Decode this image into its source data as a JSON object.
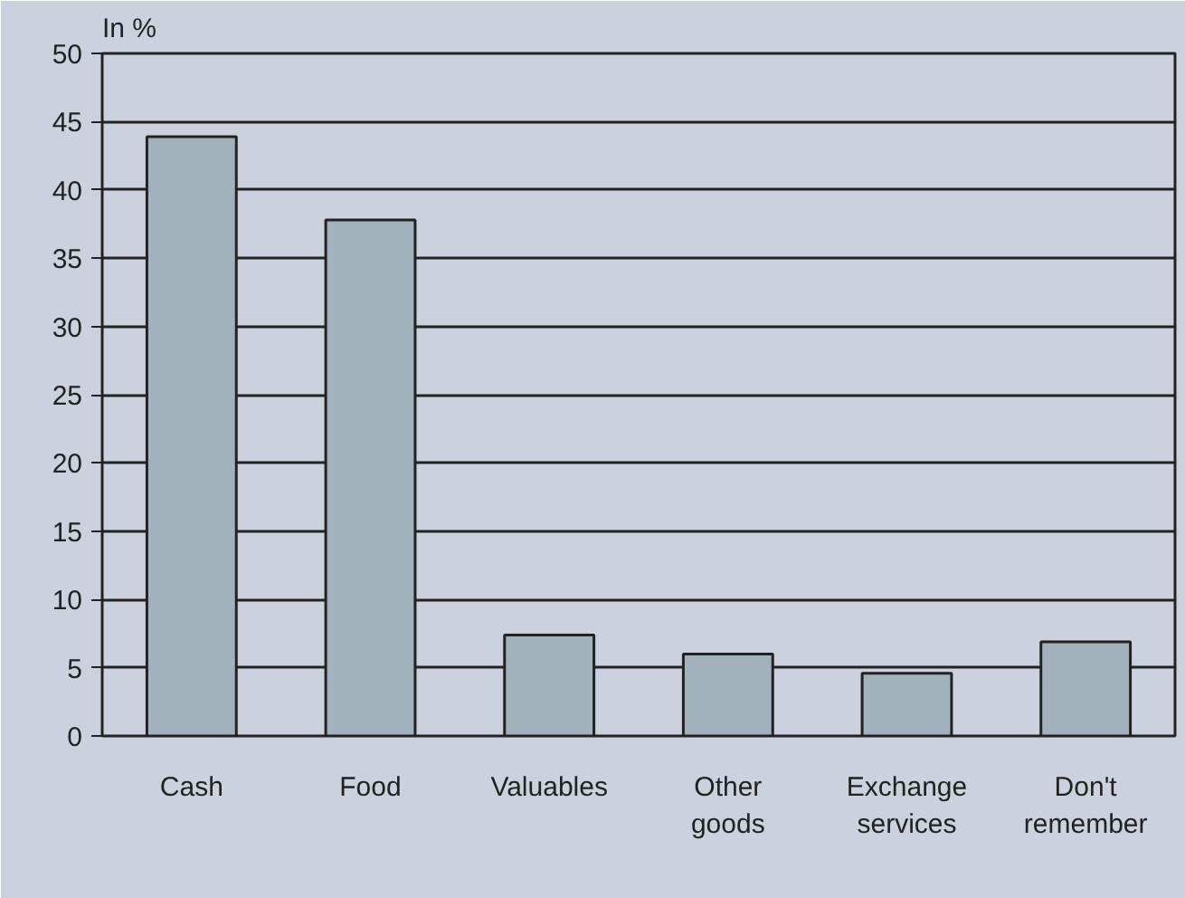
{
  "chart_data": {
    "type": "bar",
    "ylabel": "In %",
    "categories": [
      "Cash",
      "Food",
      "Valuables",
      "Other goods",
      "Exchange services",
      "Don't remember"
    ],
    "values": [
      43.9,
      37.8,
      7.4,
      6.0,
      4.6,
      6.9
    ],
    "color": "#a1b2bd",
    "ylim": [
      0,
      50
    ],
    "yticks": [
      0,
      5,
      10,
      15,
      20,
      25,
      30,
      35,
      40,
      45,
      50
    ],
    "grid": "y"
  }
}
